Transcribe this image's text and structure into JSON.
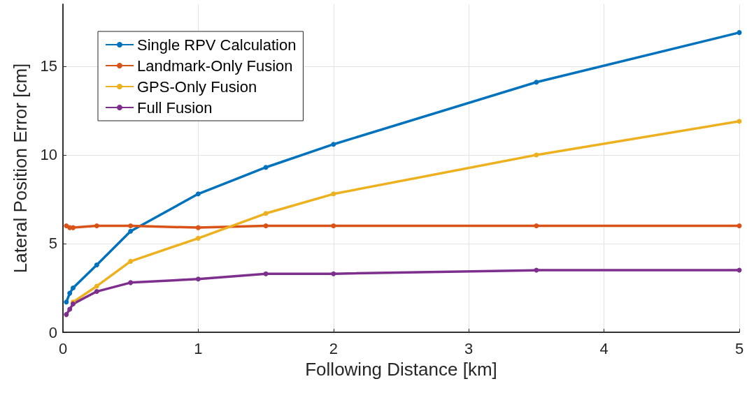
{
  "chart_data": {
    "type": "line",
    "xlabel": "Following Distance [km]",
    "ylabel": "Lateral Position Error [cm]",
    "x": [
      0.025,
      0.05,
      0.075,
      0.25,
      0.5,
      1,
      1.5,
      2,
      3.5,
      5
    ],
    "series": [
      {
        "name": "Single RPV Calculation",
        "color": "#0072bd",
        "values": [
          1.7,
          2.2,
          2.5,
          3.8,
          5.7,
          7.8,
          9.3,
          10.6,
          14.1,
          16.9
        ]
      },
      {
        "name": "Landmark-Only Fusion",
        "color": "#d95319",
        "values": [
          6.0,
          5.9,
          5.9,
          6.0,
          6.0,
          5.9,
          6.0,
          6.0,
          6.0,
          6.0
        ]
      },
      {
        "name": "GPS-Only Fusion",
        "color": "#edb120",
        "values": [
          null,
          null,
          1.7,
          2.6,
          4.0,
          5.3,
          6.7,
          7.8,
          10.0,
          11.9
        ]
      },
      {
        "name": "Full Fusion",
        "color": "#7e2f8e",
        "values": [
          1.0,
          1.3,
          1.6,
          2.3,
          2.8,
          3.0,
          3.3,
          3.3,
          3.5,
          3.5
        ]
      }
    ],
    "xlim": [
      0,
      5
    ],
    "xticks": [
      0,
      1,
      2,
      3,
      4,
      5
    ],
    "ylim": [
      0,
      18.5
    ],
    "yticks": [
      0,
      5,
      10,
      15
    ],
    "grid": true,
    "legend": "top left",
    "marker": "circle",
    "line_style": "solid"
  }
}
